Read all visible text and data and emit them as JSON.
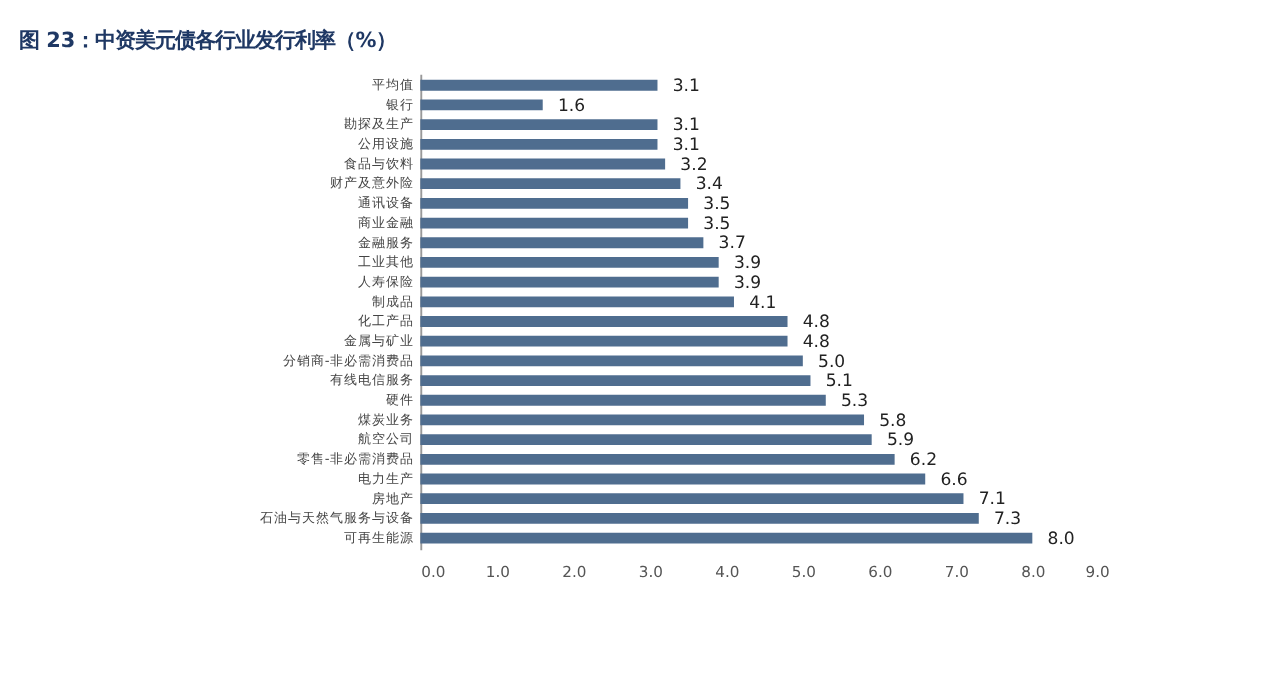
{
  "chart_data": {
    "type": "bar",
    "orientation": "horizontal",
    "title": "图 23：中资美元债各行业发行利率（%）",
    "categories": [
      "平均值",
      "银行",
      "勘探及生产",
      "公用设施",
      "食品与饮料",
      "财产及意外险",
      "通讯设备",
      "商业金融",
      "金融服务",
      "工业其他",
      "人寿保险",
      "制成品",
      "化工产品",
      "金属与矿业",
      "分销商-非必需消费品",
      "有线电信服务",
      "硬件",
      "煤炭业务",
      "航空公司",
      "零售-非必需消费品",
      "电力生产",
      "房地产",
      "石油与天然气服务与设备",
      "可再生能源"
    ],
    "values": [
      3.1,
      1.6,
      3.1,
      3.1,
      3.2,
      3.4,
      3.5,
      3.5,
      3.7,
      3.9,
      3.9,
      4.1,
      4.8,
      4.8,
      5.0,
      5.1,
      5.3,
      5.8,
      5.9,
      6.2,
      6.6,
      7.1,
      7.3,
      8.0
    ],
    "color": "#4f6d8f",
    "grid": false,
    "value_labels": [
      "3.1",
      "1.6",
      "3.1",
      "3.1",
      "3.2",
      "3.4",
      "3.5",
      "3.5",
      "3.7",
      "3.9",
      "3.9",
      "4.1",
      "4.8",
      "4.8",
      "5.0",
      "5.1",
      "5.3",
      "5.8",
      "5.9",
      "6.2",
      "6.6",
      "7.1",
      "7.3",
      "8.0"
    ],
    "xlim": [
      0,
      9
    ],
    "xticks": [
      {
        "value": 0,
        "label": "0.0"
      },
      {
        "value": 1,
        "label": "1.0"
      },
      {
        "value": 2,
        "label": "2.0"
      },
      {
        "value": 3,
        "label": "3.0"
      },
      {
        "value": 4,
        "label": "4.0"
      },
      {
        "value": 5,
        "label": "5.0"
      },
      {
        "value": 6,
        "label": "6.0"
      },
      {
        "value": 7,
        "label": "7.0"
      },
      {
        "value": 8,
        "label": "8.0"
      },
      {
        "value": 9,
        "label": "9.0"
      }
    ]
  }
}
